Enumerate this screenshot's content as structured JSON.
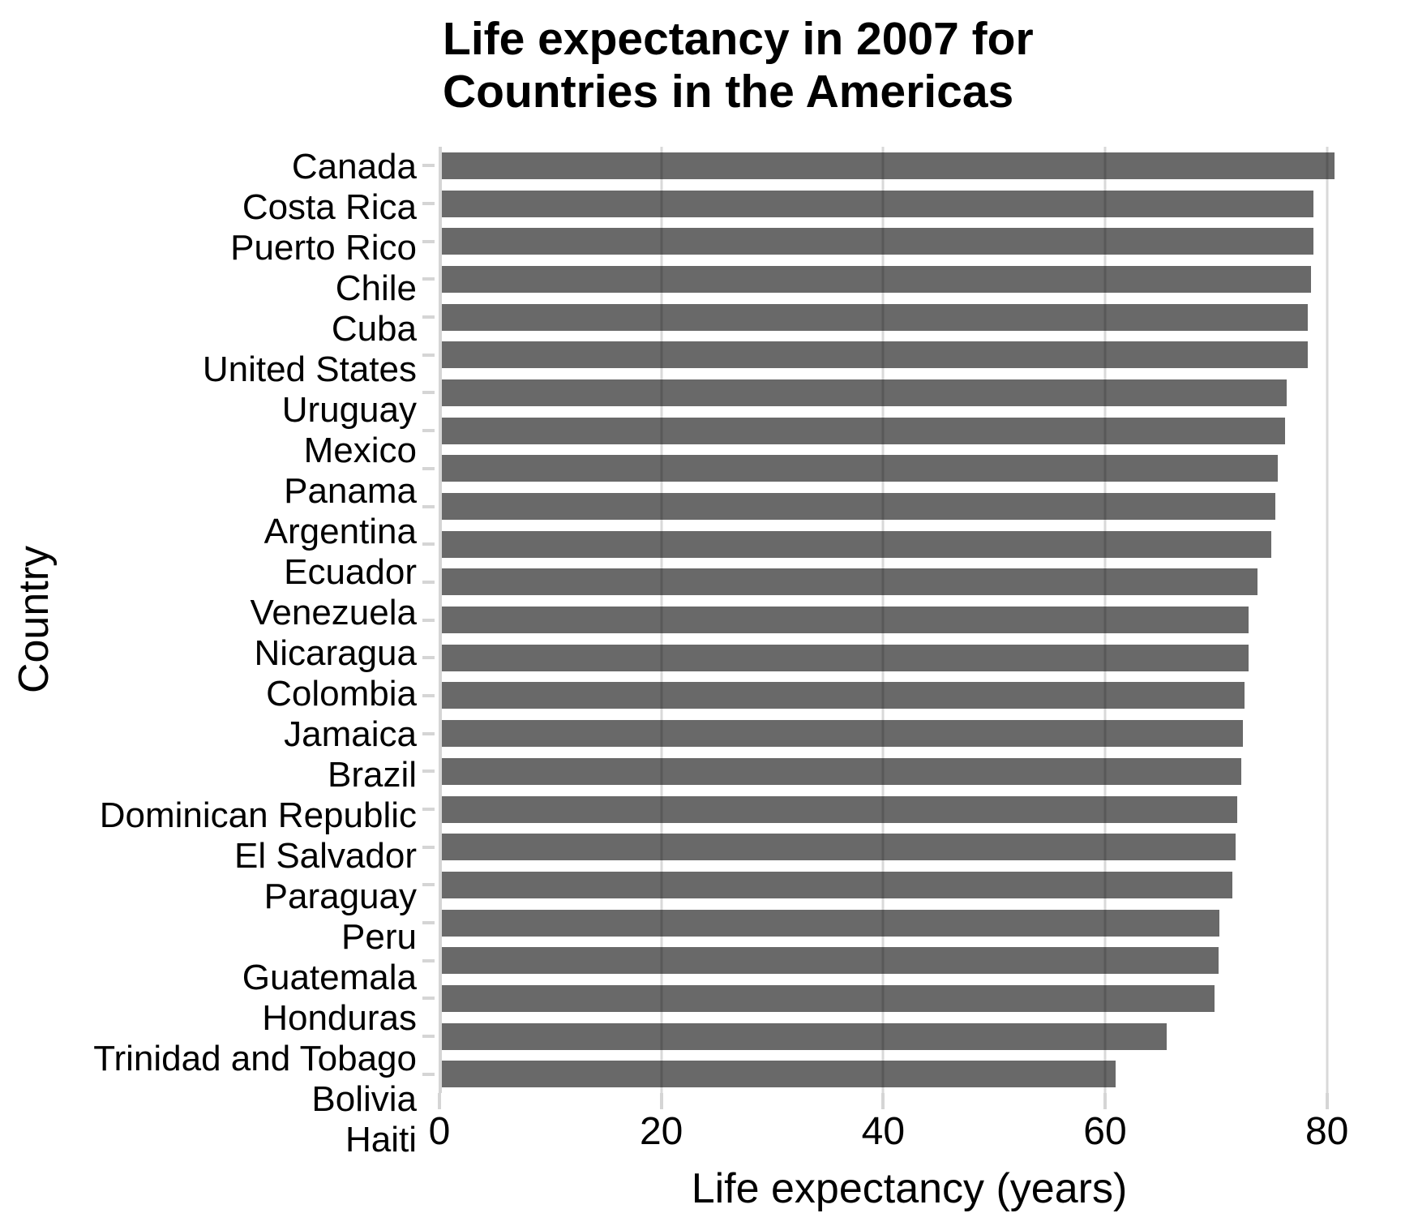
{
  "title": {
    "line1": "Life expectancy in 2007 for",
    "line2": "Countries in the Americas"
  },
  "axes": {
    "x_label": "Life expectancy (years)",
    "y_label": "Country",
    "x_ticks": [
      "0",
      "20",
      "40",
      "60",
      "80"
    ],
    "x_tick_values": [
      0,
      20,
      40,
      60,
      80
    ]
  },
  "colors": {
    "bar": "#696969",
    "axis_line": "#d5d5d5",
    "tick_mark": "#d5d5d5",
    "gridline_over_bar": "rgba(0,0,0,0.15)",
    "text": "#000000",
    "background": "#ffffff"
  },
  "chart_data": {
    "type": "bar",
    "orientation": "horizontal",
    "title": "Life expectancy in 2007 for Countries in the Americas",
    "xlabel": "Life expectancy (years)",
    "ylabel": "Country",
    "xlim": [
      0,
      84.7
    ],
    "x_ticks": [
      0,
      20,
      40,
      60,
      80
    ],
    "grid": "major-x",
    "legend": "none",
    "categories": [
      "Canada",
      "Costa Rica",
      "Puerto Rico",
      "Chile",
      "Cuba",
      "United States",
      "Uruguay",
      "Mexico",
      "Panama",
      "Argentina",
      "Ecuador",
      "Venezuela",
      "Nicaragua",
      "Colombia",
      "Jamaica",
      "Brazil",
      "Dominican Republic",
      "El Salvador",
      "Paraguay",
      "Peru",
      "Guatemala",
      "Honduras",
      "Trinidad and Tobago",
      "Bolivia",
      "Haiti"
    ],
    "values": [
      80.653,
      78.782,
      78.746,
      78.553,
      78.273,
      78.242,
      76.384,
      76.195,
      75.537,
      75.32,
      74.994,
      73.747,
      72.899,
      72.889,
      72.567,
      72.39,
      72.235,
      71.878,
      71.752,
      71.421,
      70.259,
      70.198,
      69.819,
      65.554,
      60.916
    ]
  }
}
